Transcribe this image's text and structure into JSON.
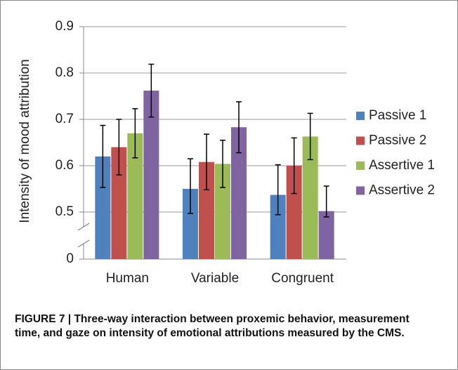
{
  "chart_data": {
    "type": "bar",
    "y_label": "Intensity of mood attribution",
    "categories": [
      "Human",
      "Variable",
      "Congruent"
    ],
    "series": [
      {
        "name": "Passive 1",
        "color": "#4f81bd",
        "values": [
          0.62,
          0.55,
          0.537
        ],
        "errors": [
          0.067,
          0.065,
          0.065
        ]
      },
      {
        "name": "Passive 2",
        "color": "#c0504d",
        "values": [
          0.64,
          0.608,
          0.6
        ],
        "errors": [
          0.06,
          0.06,
          0.06
        ]
      },
      {
        "name": "Assertive 1",
        "color": "#9bbb59",
        "values": [
          0.67,
          0.604,
          0.663
        ],
        "errors": [
          0.053,
          0.051,
          0.05
        ]
      },
      {
        "name": "Assertive 2",
        "color": "#8064a2",
        "values": [
          0.762,
          0.683,
          0.502
        ],
        "errors": [
          0.057,
          0.055,
          0.054
        ]
      }
    ],
    "ylim": [
      0,
      0.9
    ],
    "yticks": [
      0,
      0.5,
      0.6,
      0.7,
      0.8,
      0.9
    ],
    "axis_break": [
      0,
      0.5
    ],
    "grid": true,
    "legend": "right"
  },
  "caption_label": "FIGURE 7 |",
  "caption": "Three-way interaction between proxemic behavior, measurement time, and gaze on intensity of emotional attributions measured by the CMS."
}
